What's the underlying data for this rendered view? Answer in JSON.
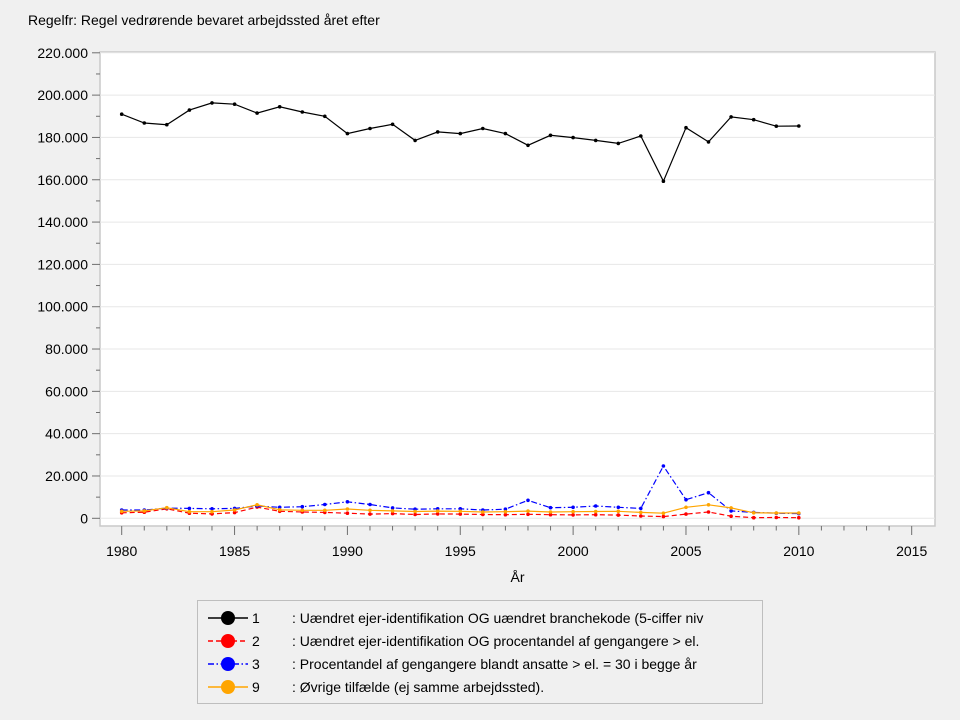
{
  "page": {
    "title": "Regelfr: Regel vedrørende bevaret arbejdssted året efter"
  },
  "chart_data": {
    "type": "line",
    "title": "Regelfr: Regel vedrørende bevaret arbejdssted året efter",
    "xlabel": "År",
    "ylabel": "",
    "xlim": [
      1979,
      2016
    ],
    "ylim": [
      0,
      220000
    ],
    "grid": "horizontal",
    "legend_position": "bottom",
    "x_major_ticks": [
      1980,
      1985,
      1990,
      1995,
      2000,
      2005,
      2010,
      2015
    ],
    "x_tick_labels": [
      "1980",
      "1985",
      "1990",
      "1995",
      "2000",
      "2005",
      "2010",
      "2015"
    ],
    "x_minor_step": 1,
    "y_major_ticks": [
      0,
      20000,
      40000,
      60000,
      80000,
      100000,
      120000,
      140000,
      160000,
      180000,
      200000,
      220000
    ],
    "y_tick_labels": [
      "0",
      "20.000",
      "40.000",
      "60.000",
      "80.000",
      "100.000",
      "120.000",
      "140.000",
      "160.000",
      "180.000",
      "200.000",
      "220.000"
    ],
    "y_minor_step": 10000,
    "x": [
      1980,
      1981,
      1982,
      1983,
      1984,
      1985,
      1986,
      1987,
      1988,
      1989,
      1990,
      1991,
      1992,
      1993,
      1994,
      1995,
      1996,
      1997,
      1998,
      1999,
      2000,
      2001,
      2002,
      2003,
      2004,
      2005,
      2006,
      2007,
      2008,
      2009,
      2010
    ],
    "series": [
      {
        "name": "1",
        "label": ": Uændret ejer-identifikation OG uændret branchekode (5-ciffer niv",
        "color": "#000000",
        "line_style": "solid",
        "values": [
          191000,
          186800,
          186000,
          192900,
          196300,
          195700,
          191500,
          194500,
          192000,
          190000,
          181800,
          184200,
          186200,
          178600,
          182600,
          181800,
          184200,
          181800,
          176300,
          181000,
          179900,
          178600,
          177200,
          180700,
          159300,
          184600,
          177900,
          189700,
          188400,
          185300,
          185400
        ]
      },
      {
        "name": "2",
        "label": ": Uændret ejer-identifikation OG procentandel af gengangere > el.",
        "color": "#ff0000",
        "line_style": "dashed",
        "values": [
          2600,
          2900,
          4500,
          2400,
          2100,
          2700,
          5300,
          3300,
          3000,
          2800,
          2400,
          2000,
          2200,
          1800,
          2100,
          2000,
          1800,
          1700,
          1900,
          1700,
          1600,
          1700,
          1500,
          1100,
          800,
          2000,
          3000,
          1000,
          300,
          400,
          300
        ]
      },
      {
        "name": "3",
        "label": ": Procentandel af gengangere blandt ansatte > el. = 30 i begge år",
        "color": "#0000ff",
        "line_style": "dash-dot",
        "values": [
          3900,
          3900,
          4800,
          4700,
          4500,
          4700,
          5800,
          5200,
          5500,
          6500,
          7800,
          6500,
          4900,
          4300,
          4500,
          4500,
          3900,
          4300,
          8500,
          5000,
          5200,
          5800,
          5200,
          4700,
          24700,
          8800,
          12100,
          3500,
          2800,
          2400,
          2200
        ]
      },
      {
        "name": "9",
        "label": ": Øvrige tilfælde (ej samme arbejdssted).",
        "color": "#ffa500",
        "line_style": "solid",
        "values": [
          3300,
          3500,
          5000,
          3100,
          3100,
          3900,
          6400,
          4000,
          3800,
          3800,
          4400,
          3800,
          3500,
          3200,
          3400,
          3300,
          3000,
          3100,
          3400,
          3000,
          3100,
          3200,
          3300,
          2800,
          2400,
          5200,
          6400,
          4900,
          2600,
          2500,
          2500
        ]
      }
    ]
  },
  "colors": {
    "page_background": "#f0f0f0",
    "plot_background": "#ffffff",
    "plot_frame": "#c9c9c9",
    "gridline": "#e7e7e7",
    "tick": "#6e6e6e",
    "series1": "#000000",
    "series2": "#ff0000",
    "series3": "#0000ff",
    "series9": "#ffa500"
  }
}
